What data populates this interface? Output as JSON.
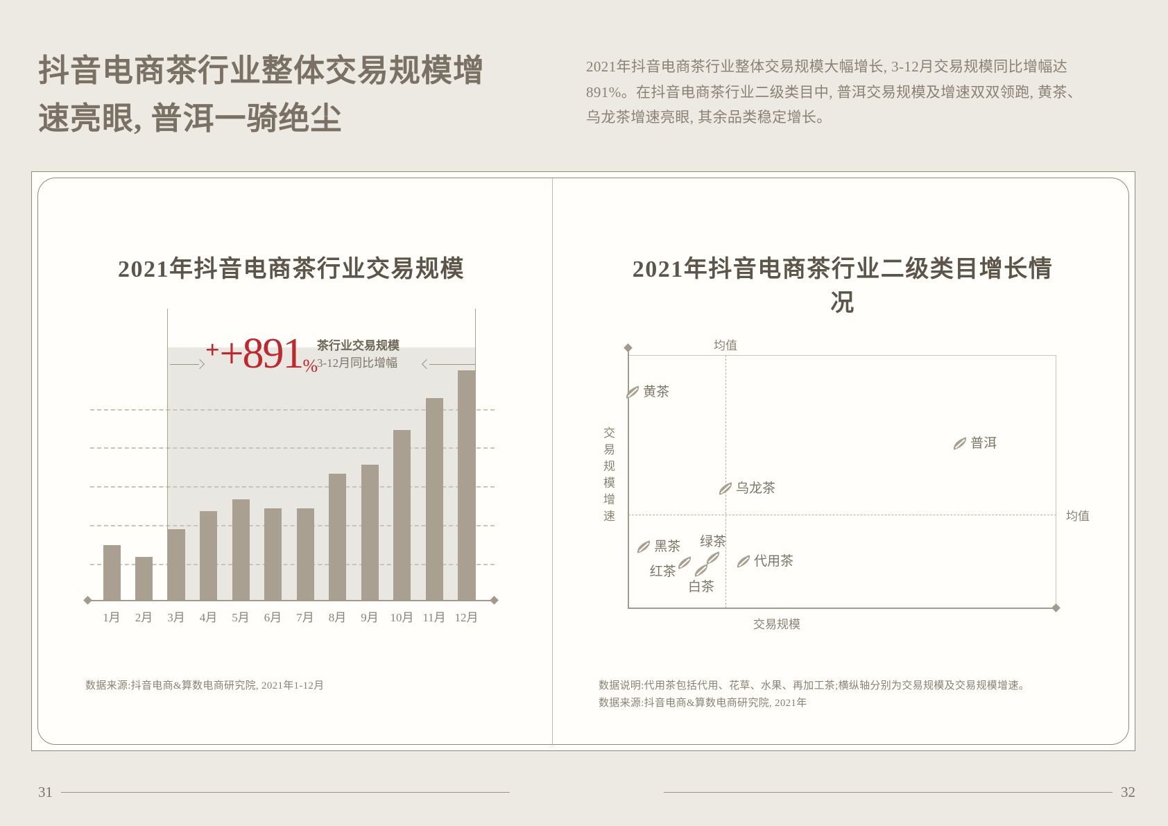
{
  "header": {
    "title_lines": [
      "抖音电商茶行业整体交易规模增",
      "速亮眼, 普洱一骑绝尘"
    ],
    "intro": "2021年抖音电商茶行业整体交易规模大幅增长, 3-12月交易规模同比增幅达891%。在抖音电商茶行业二级类目中, 普洱交易规模及增速双双领跑, 黄茶、乌龙茶增速亮眼, 其余品类稳定增长。"
  },
  "footer": {
    "page_left": "31",
    "page_right": "32"
  },
  "colors": {
    "paper": "#edeae4",
    "panel": "#fffefa",
    "bar": "#a9a092",
    "accent_red": "#bf282d",
    "ink": "#5d554a",
    "muted": "#8b8275",
    "axis": "#a39a8b",
    "band": "#e9e7e2"
  },
  "chart_data": [
    {
      "type": "bar",
      "title": "2021年抖音电商茶行业交易规模",
      "categories": [
        "1月",
        "2月",
        "3月",
        "4月",
        "5月",
        "6月",
        "7月",
        "8月",
        "9月",
        "10月",
        "11月",
        "12月"
      ],
      "values": [
        24,
        19,
        31,
        39,
        44,
        40,
        40,
        55,
        59,
        74,
        88,
        100
      ],
      "values_note": "estimated relative heights, December = 100 (y-axis unlabeled)",
      "ylim": [
        0,
        108
      ],
      "grid": true,
      "gridline_count": 5,
      "annotation": {
        "value": "+891",
        "percent_sign": "%",
        "label_bold": "茶行业交易规模",
        "label_sub": "3-12月同比增幅",
        "highlight_range": [
          "3月",
          "12月"
        ]
      },
      "source": "数据来源:抖音电商&算数电商研究院, 2021年1-12月"
    },
    {
      "type": "scatter",
      "title": "2021年抖音电商茶行业二级类目增长情况",
      "xlabel": "交易规模",
      "ylabel": "交易规模增速",
      "mean_label_top": "均值",
      "mean_label_right": "均值",
      "mean_x_pct": 22.7,
      "mean_y_pct": 63,
      "points": [
        {
          "name": "黄茶",
          "x_pct": 1.0,
          "y_pct": 14.8,
          "label_pos": "right"
        },
        {
          "name": "普洱",
          "x_pct": 77.5,
          "y_pct": 35.1,
          "label_pos": "right"
        },
        {
          "name": "乌龙茶",
          "x_pct": 22.7,
          "y_pct": 52.9,
          "label_pos": "right"
        },
        {
          "name": "黑茶",
          "x_pct": 3.6,
          "y_pct": 75.9,
          "label_pos": "right"
        },
        {
          "name": "红茶",
          "x_pct": 13.1,
          "y_pct": 82.2,
          "label_pos": "left-below"
        },
        {
          "name": "绿茶",
          "x_pct": 19.8,
          "y_pct": 80.3,
          "label_pos": "above"
        },
        {
          "name": "白茶",
          "x_pct": 17.0,
          "y_pct": 85.2,
          "label_pos": "below"
        },
        {
          "name": "代用茶",
          "x_pct": 26.9,
          "y_pct": 81.6,
          "label_pos": "right"
        }
      ],
      "positions_note": "x_pct/y_pct are estimated positions within plot box (axes unlabeled), y_pct measured from top",
      "notes": [
        "数据说明:代用茶包括代用、花草、水果、再加工茶;横纵轴分别为交易规模及交易规模增速。",
        "数据来源:抖音电商&算数电商研究院, 2021年"
      ]
    }
  ]
}
